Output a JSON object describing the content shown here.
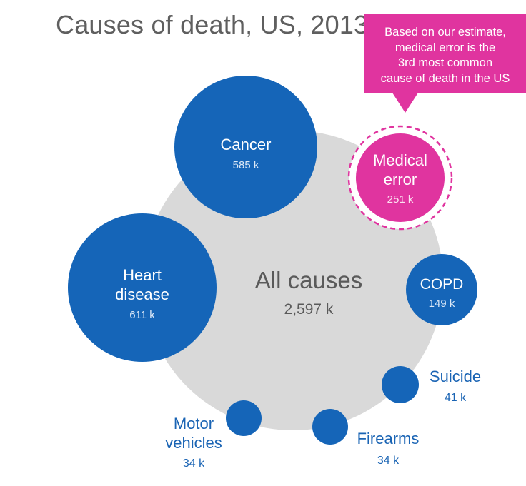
{
  "chart_data": {
    "type": "bubble",
    "title": "Causes of death, US, 2013",
    "unit": "k",
    "total": {
      "label": "All causes",
      "value": 2597,
      "value_label": "2,597 k"
    },
    "series": [
      {
        "name": "Heart disease",
        "label_lines": [
          "Heart",
          "disease"
        ],
        "value": 611,
        "value_label": "611 k",
        "highlight": false
      },
      {
        "name": "Cancer",
        "label_lines": [
          "Cancer"
        ],
        "value": 585,
        "value_label": "585 k",
        "highlight": false
      },
      {
        "name": "Medical error",
        "label_lines": [
          "Medical",
          "error"
        ],
        "value": 251,
        "value_label": "251 k",
        "highlight": true
      },
      {
        "name": "COPD",
        "label_lines": [
          "COPD"
        ],
        "value": 149,
        "value_label": "149 k",
        "highlight": false
      },
      {
        "name": "Suicide",
        "label_lines": [
          "Suicide"
        ],
        "value": 41,
        "value_label": "41 k",
        "highlight": false
      },
      {
        "name": "Firearms",
        "label_lines": [
          "Firearms"
        ],
        "value": 34,
        "value_label": "34 k",
        "highlight": false
      },
      {
        "name": "Motor vehicles",
        "label_lines": [
          "Motor",
          "vehicles"
        ],
        "value": 34,
        "value_label": "34 k",
        "highlight": false
      }
    ]
  },
  "callout": {
    "lines": [
      "Based on our estimate,",
      "medical error is the",
      "3rd most common",
      "cause of death in the US"
    ]
  },
  "colors": {
    "bubble": "#1565b8",
    "highlight": "#e0349f",
    "total": "#d9d9d9",
    "title": "#5f5f5f",
    "outside_label": "#1a64b4",
    "total_label": "#5a5a5a"
  }
}
